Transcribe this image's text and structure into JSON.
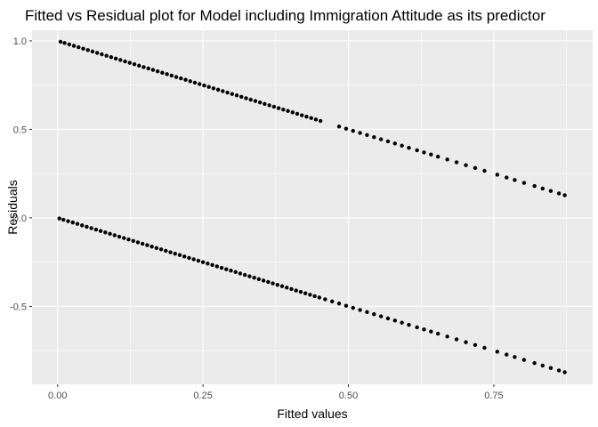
{
  "chart_data": {
    "type": "scatter",
    "title": "Fitted vs Residual plot for Model including Immigration Attitude as its predictor",
    "xlabel": "Fitted values",
    "ylabel": "Residuals",
    "xlim": [
      -0.044,
      0.92
    ],
    "ylim": [
      -0.94,
      1.06
    ],
    "x_ticks": [
      0.0,
      0.25,
      0.5,
      0.75
    ],
    "x_tick_labels": [
      "0.00",
      "0.25",
      "0.50",
      "0.75"
    ],
    "y_ticks": [
      -0.5,
      0.0,
      0.5,
      1.0
    ],
    "y_tick_labels": [
      "-0.5",
      "0.0",
      "0.5",
      "1.0"
    ],
    "grid": true,
    "legend": "none",
    "colors": {
      "panel_background": "#ebebeb",
      "grid": "#ffffff",
      "points": "#000000"
    },
    "series": [
      {
        "relation": "residual = 1 - fitted",
        "x": [
          0.005,
          0.012,
          0.02,
          0.028,
          0.036,
          0.044,
          0.052,
          0.06,
          0.068,
          0.076,
          0.084,
          0.092,
          0.1,
          0.108,
          0.116,
          0.124,
          0.132,
          0.14,
          0.148,
          0.156,
          0.164,
          0.172,
          0.18,
          0.188,
          0.196,
          0.204,
          0.212,
          0.22,
          0.228,
          0.236,
          0.244,
          0.252,
          0.26,
          0.268,
          0.276,
          0.284,
          0.292,
          0.3,
          0.308,
          0.316,
          0.324,
          0.332,
          0.34,
          0.348,
          0.356,
          0.364,
          0.372,
          0.38,
          0.388,
          0.396,
          0.404,
          0.412,
          0.42,
          0.428,
          0.436,
          0.444,
          0.452,
          0.484,
          0.496,
          0.508,
          0.52,
          0.532,
          0.544,
          0.556,
          0.568,
          0.58,
          0.592,
          0.604,
          0.618,
          0.63,
          0.642,
          0.654,
          0.67,
          0.686,
          0.702,
          0.718,
          0.734,
          0.756,
          0.772,
          0.786,
          0.802,
          0.82,
          0.834,
          0.848,
          0.862,
          0.872
        ]
      },
      {
        "relation": "residual = -fitted",
        "x": [
          0.003,
          0.01,
          0.018,
          0.026,
          0.034,
          0.042,
          0.05,
          0.058,
          0.066,
          0.074,
          0.082,
          0.09,
          0.098,
          0.106,
          0.114,
          0.122,
          0.13,
          0.138,
          0.146,
          0.154,
          0.162,
          0.17,
          0.178,
          0.186,
          0.194,
          0.202,
          0.21,
          0.218,
          0.226,
          0.234,
          0.242,
          0.25,
          0.258,
          0.266,
          0.274,
          0.282,
          0.29,
          0.298,
          0.306,
          0.314,
          0.322,
          0.33,
          0.338,
          0.346,
          0.354,
          0.362,
          0.37,
          0.378,
          0.386,
          0.394,
          0.402,
          0.41,
          0.418,
          0.426,
          0.434,
          0.442,
          0.45,
          0.46,
          0.472,
          0.484,
          0.496,
          0.508,
          0.52,
          0.532,
          0.544,
          0.556,
          0.568,
          0.58,
          0.592,
          0.604,
          0.618,
          0.63,
          0.642,
          0.654,
          0.67,
          0.686,
          0.702,
          0.718,
          0.734,
          0.756,
          0.772,
          0.786,
          0.802,
          0.82,
          0.834,
          0.848,
          0.862,
          0.872
        ]
      }
    ]
  }
}
